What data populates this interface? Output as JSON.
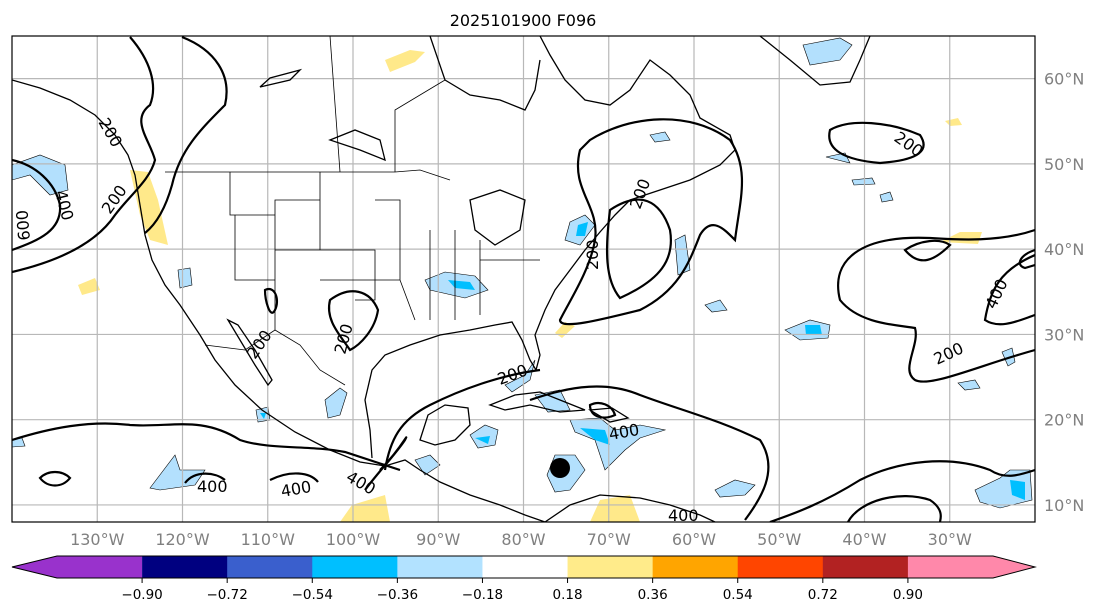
{
  "title": "2025101900 F096",
  "lon_ticks": [
    {
      "lon": -130,
      "label": "130°W"
    },
    {
      "lon": -120,
      "label": "120°W"
    },
    {
      "lon": -110,
      "label": "110°W"
    },
    {
      "lon": -100,
      "label": "100°W"
    },
    {
      "lon": -90,
      "label": "90°W"
    },
    {
      "lon": -80,
      "label": "80°W"
    },
    {
      "lon": -70,
      "label": "70°W"
    },
    {
      "lon": -60,
      "label": "60°W"
    },
    {
      "lon": -50,
      "label": "50°W"
    },
    {
      "lon": -40,
      "label": "40°W"
    },
    {
      "lon": -30,
      "label": "30°W"
    }
  ],
  "lat_ticks": [
    {
      "lat": 60,
      "label": "60°N"
    },
    {
      "lat": 50,
      "label": "50°N"
    },
    {
      "lat": 40,
      "label": "40°N"
    },
    {
      "lat": 30,
      "label": "30°N"
    },
    {
      "lat": 20,
      "label": "20°N"
    },
    {
      "lat": 10,
      "label": "10°N"
    }
  ],
  "map_extent": {
    "lon": [
      -140,
      -20
    ],
    "lat": [
      8,
      65
    ]
  },
  "colorbar": {
    "ticks": [
      "−0.90",
      "−0.72",
      "−0.54",
      "−0.36",
      "−0.18",
      "0.18",
      "0.36",
      "0.54",
      "0.72",
      "0.90"
    ],
    "colors": [
      "#9932cc",
      "#000080",
      "#3a5fcd",
      "#00bfff",
      "#b2e2ff",
      "#ffffff",
      "#ffeb8a",
      "#ffa500",
      "#ff4500",
      "#b22222",
      "#ff88aa"
    ]
  },
  "contour_labels": [
    "200",
    "400",
    "600",
    "200",
    "400",
    "400",
    "400",
    "200",
    "200",
    "200",
    "200",
    "200",
    "400",
    "200",
    "400",
    "200",
    "400"
  ]
}
